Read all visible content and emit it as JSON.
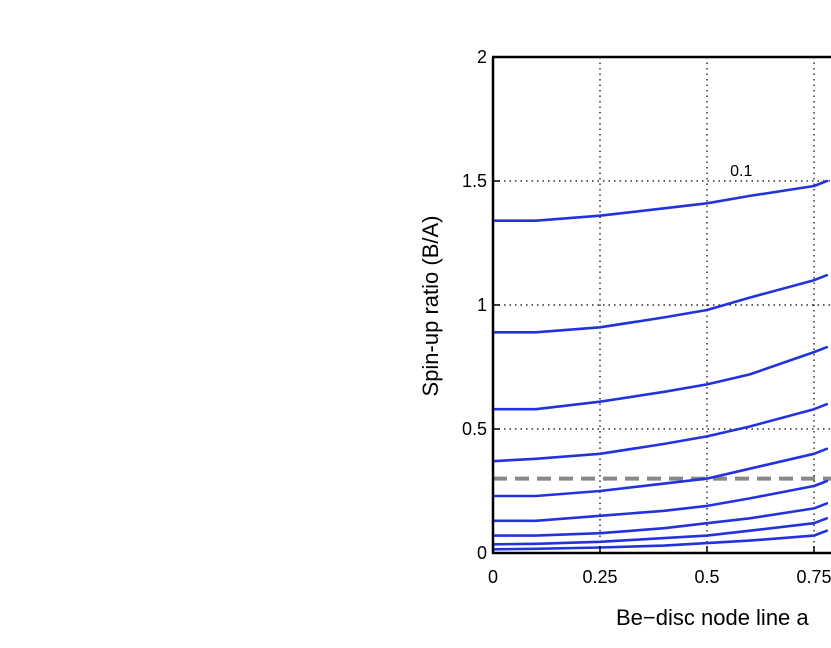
{
  "chart_data": {
    "type": "line",
    "title": "",
    "xlabel": "Be−disc node line a",
    "ylabel": "Spin-up ratio (B/A)",
    "xlim": [
      0,
      1
    ],
    "ylim": [
      0,
      2
    ],
    "x_ticks": [
      "0",
      "0.25",
      "0.5",
      "0.75"
    ],
    "y_ticks": [
      "0",
      "0.5",
      "1",
      "1.5",
      "2"
    ],
    "grid": true,
    "line_color": "#2233dd",
    "reference_color": "#888888",
    "reference_line": {
      "y": 0.3
    },
    "annotations": [
      {
        "text": "0.1",
        "x": 0.58,
        "y": 1.52
      }
    ],
    "series": [
      {
        "x": [
          0,
          0.1,
          0.25,
          0.4,
          0.5,
          0.6,
          0.75,
          0.78
        ],
        "values": [
          1.34,
          1.34,
          1.36,
          1.39,
          1.41,
          1.44,
          1.48,
          1.5
        ]
      },
      {
        "x": [
          0,
          0.1,
          0.25,
          0.4,
          0.5,
          0.6,
          0.75,
          0.78
        ],
        "values": [
          0.89,
          0.89,
          0.91,
          0.95,
          0.98,
          1.03,
          1.1,
          1.12
        ]
      },
      {
        "x": [
          0,
          0.1,
          0.25,
          0.4,
          0.5,
          0.6,
          0.75,
          0.78
        ],
        "values": [
          0.58,
          0.58,
          0.61,
          0.65,
          0.68,
          0.72,
          0.81,
          0.83
        ]
      },
      {
        "x": [
          0,
          0.1,
          0.25,
          0.4,
          0.5,
          0.6,
          0.75,
          0.78
        ],
        "values": [
          0.37,
          0.38,
          0.4,
          0.44,
          0.47,
          0.51,
          0.58,
          0.6
        ]
      },
      {
        "x": [
          0,
          0.1,
          0.25,
          0.4,
          0.5,
          0.6,
          0.75,
          0.78
        ],
        "values": [
          0.23,
          0.23,
          0.25,
          0.28,
          0.3,
          0.34,
          0.4,
          0.42
        ]
      },
      {
        "x": [
          0,
          0.1,
          0.25,
          0.4,
          0.5,
          0.6,
          0.75,
          0.78
        ],
        "values": [
          0.13,
          0.13,
          0.15,
          0.17,
          0.19,
          0.22,
          0.27,
          0.29
        ]
      },
      {
        "x": [
          0,
          0.1,
          0.25,
          0.4,
          0.5,
          0.6,
          0.75,
          0.78
        ],
        "values": [
          0.07,
          0.07,
          0.08,
          0.1,
          0.12,
          0.14,
          0.18,
          0.2
        ]
      },
      {
        "x": [
          0,
          0.1,
          0.25,
          0.4,
          0.5,
          0.6,
          0.75,
          0.78
        ],
        "values": [
          0.035,
          0.037,
          0.045,
          0.06,
          0.07,
          0.09,
          0.12,
          0.14
        ]
      },
      {
        "x": [
          0,
          0.1,
          0.25,
          0.4,
          0.5,
          0.6,
          0.75,
          0.78
        ],
        "values": [
          0.015,
          0.017,
          0.022,
          0.03,
          0.04,
          0.05,
          0.07,
          0.09
        ]
      }
    ]
  }
}
